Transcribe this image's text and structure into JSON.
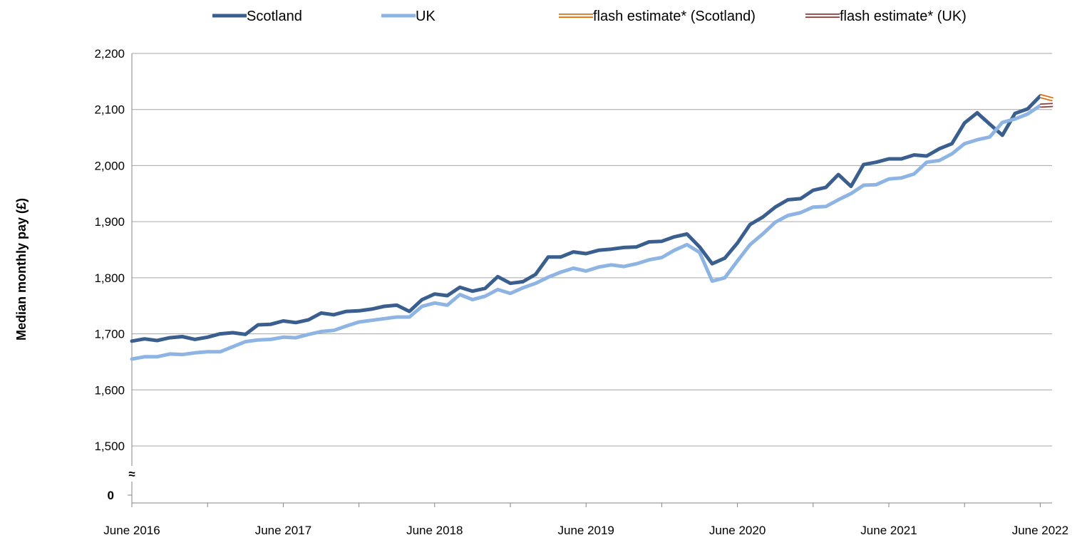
{
  "chart_data": {
    "type": "line",
    "title": "",
    "ylabel": "Median monthly pay (£)",
    "xlabel": "",
    "ylim": [
      1500,
      2200
    ],
    "ytick_values": [
      1500,
      1600,
      1700,
      1800,
      1900,
      2000,
      2100,
      2200
    ],
    "ytick_labels": [
      "1,500",
      "1,600",
      "1,700",
      "1,800",
      "1,900",
      "2,000",
      "2,100",
      "2,200"
    ],
    "y_zero_label": "0",
    "axis_break_symbol": "≈",
    "x_start": "June 2016",
    "x_end": "August 2022",
    "xtick_labels": [
      "June 2016",
      "June 2017",
      "June 2018",
      "June 2019",
      "June 2020",
      "June 2021",
      "June 2022"
    ],
    "grid": "horizontal",
    "legend_position": "top",
    "series": [
      {
        "name": "Scotland",
        "color": "#3a5f8f",
        "values": [
          1687,
          1691,
          1688,
          1693,
          1695,
          1690,
          1694,
          1700,
          1702,
          1699,
          1716,
          1717,
          1723,
          1720,
          1725,
          1737,
          1734,
          1740,
          1741,
          1744,
          1749,
          1751,
          1740,
          1761,
          1771,
          1768,
          1783,
          1776,
          1781,
          1802,
          1790,
          1793,
          1806,
          1837,
          1837,
          1846,
          1843,
          1849,
          1851,
          1854,
          1855,
          1864,
          1865,
          1873,
          1878,
          1855,
          1825,
          1835,
          1862,
          1895,
          1908,
          1926,
          1939,
          1941,
          1956,
          1961,
          1984,
          1963,
          2002,
          2006,
          2012,
          2012,
          2019,
          2017,
          2030,
          2039,
          2076,
          2094,
          2074,
          2054,
          2093,
          2101,
          2124
        ]
      },
      {
        "name": "UK",
        "color": "#8eb4e3",
        "values": [
          1655,
          1659,
          1659,
          1664,
          1663,
          1666,
          1668,
          1668,
          1677,
          1686,
          1689,
          1690,
          1694,
          1693,
          1699,
          1704,
          1706,
          1714,
          1721,
          1724,
          1727,
          1730,
          1730,
          1749,
          1755,
          1751,
          1770,
          1761,
          1767,
          1779,
          1772,
          1782,
          1790,
          1801,
          1810,
          1817,
          1812,
          1819,
          1823,
          1820,
          1825,
          1832,
          1836,
          1849,
          1859,
          1845,
          1794,
          1800,
          1830,
          1859,
          1878,
          1899,
          1911,
          1916,
          1926,
          1927,
          1939,
          1950,
          1965,
          1966,
          1976,
          1978,
          1985,
          2006,
          2009,
          2021,
          2039,
          2046,
          2051,
          2077,
          2083,
          2092,
          2107
        ]
      },
      {
        "name": "flash estimate* (Scotland)",
        "color": "#e36c09",
        "style": "double",
        "start_index": 72,
        "values": [
          2124,
          2118
        ]
      },
      {
        "name": "flash estimate* (UK)",
        "color": "#953735",
        "style": "double",
        "start_index": 72,
        "values": [
          2107,
          2108
        ]
      }
    ]
  }
}
